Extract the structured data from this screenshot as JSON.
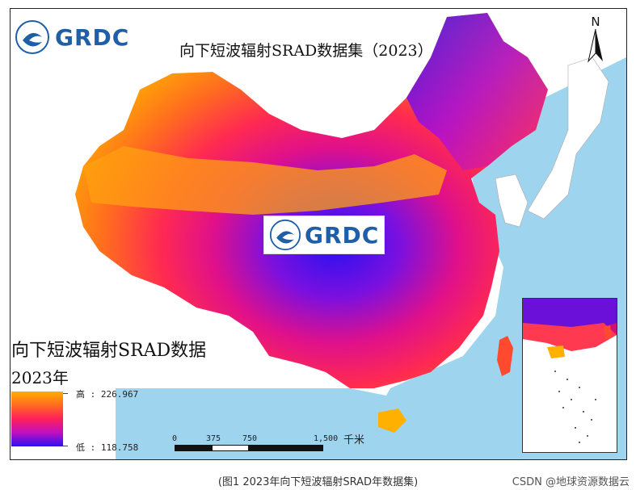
{
  "map": {
    "title": "向下短波辐射SRAD数据集（2023）",
    "logo_text": "GRDC",
    "colors": {
      "sea": "#9fd4ee",
      "land_outside": "#ffffff",
      "high": "#ffb000",
      "mid_high": "#ff6a20",
      "mid": "#ff1f5a",
      "mid_low": "#c010c0",
      "low": "#2a10f0"
    }
  },
  "legend": {
    "title": "向下短波辐射SRAD数据",
    "year": "2023年",
    "high_label": "高 : 226.967",
    "low_label": "低 : 118.758",
    "high_value": 226.967,
    "low_value": 118.758
  },
  "scale_bar": {
    "labels": [
      "0",
      "375",
      "750",
      "1,500"
    ],
    "unit": "千米"
  },
  "north_arrow": {
    "label": "N",
    "icon": "north-arrow-icon"
  },
  "caption": "(图1 2023年向下短波辐射SRAD年数据集)",
  "watermark": "CSDN @地球资源数据云"
}
